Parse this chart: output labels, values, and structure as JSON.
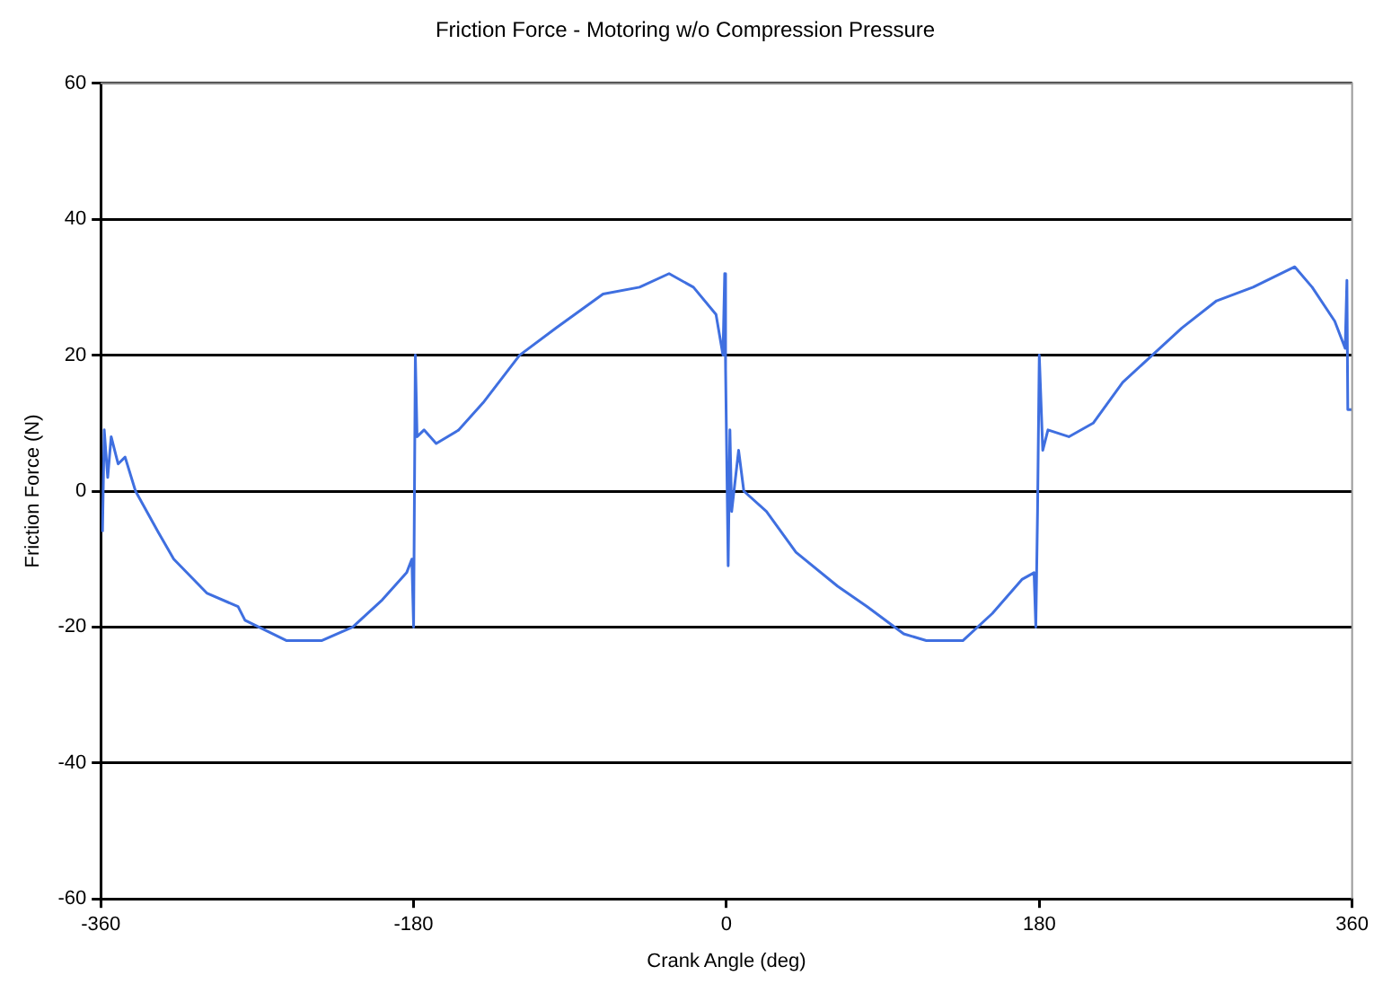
{
  "chart_data": {
    "type": "line",
    "title": "Friction Force - Motoring w/o Compression Pressure",
    "xlabel": "Crank Angle (deg)",
    "ylabel": "Friction Force (N)",
    "x": [
      -359,
      -358,
      -356,
      -354,
      -350,
      -346,
      -340,
      -327,
      -318,
      -299,
      -281,
      -277,
      -253,
      -233,
      -215,
      -198,
      -184,
      -181,
      -180,
      -179,
      -178,
      -174,
      -167,
      -154,
      -140,
      -119,
      -98,
      -71,
      -50,
      -33,
      -19,
      -6,
      -2,
      -1,
      -0.5,
      1,
      2,
      3,
      7,
      10,
      23,
      40,
      64,
      81,
      102,
      115,
      136,
      153,
      170,
      177,
      178,
      179,
      180,
      182,
      185,
      197,
      211,
      228,
      245,
      262,
      282,
      303,
      327,
      337,
      350,
      356,
      357,
      357.5,
      360
    ],
    "series": [
      {
        "color": "#3f6fe0",
        "values": [
          -6,
          9,
          2,
          8,
          4,
          5,
          0,
          -6,
          -10,
          -15,
          -17,
          -19,
          -22,
          -22,
          -20,
          -16,
          -12,
          -10,
          -20,
          20,
          8,
          9,
          7,
          9,
          13,
          20,
          24,
          29,
          30,
          32,
          30,
          26,
          20,
          32,
          18,
          -11,
          9,
          -3,
          6,
          0,
          -3,
          -9,
          -14,
          -17,
          -21,
          -22,
          -22,
          -18,
          -13,
          -12,
          -20,
          -3,
          20,
          6,
          9,
          8,
          10,
          16,
          20,
          24,
          28,
          30,
          33,
          30,
          25,
          21,
          31,
          12,
          12
        ]
      }
    ],
    "xlim": [
      -360,
      360
    ],
    "xticks": [
      -360,
      -180,
      0,
      180,
      360
    ],
    "ylim": [
      -60,
      60
    ],
    "yticks": [
      -60,
      -40,
      -20,
      0,
      20,
      40,
      60
    ],
    "grid": "y",
    "legend": false,
    "marker": "none",
    "line_style": "solid"
  }
}
